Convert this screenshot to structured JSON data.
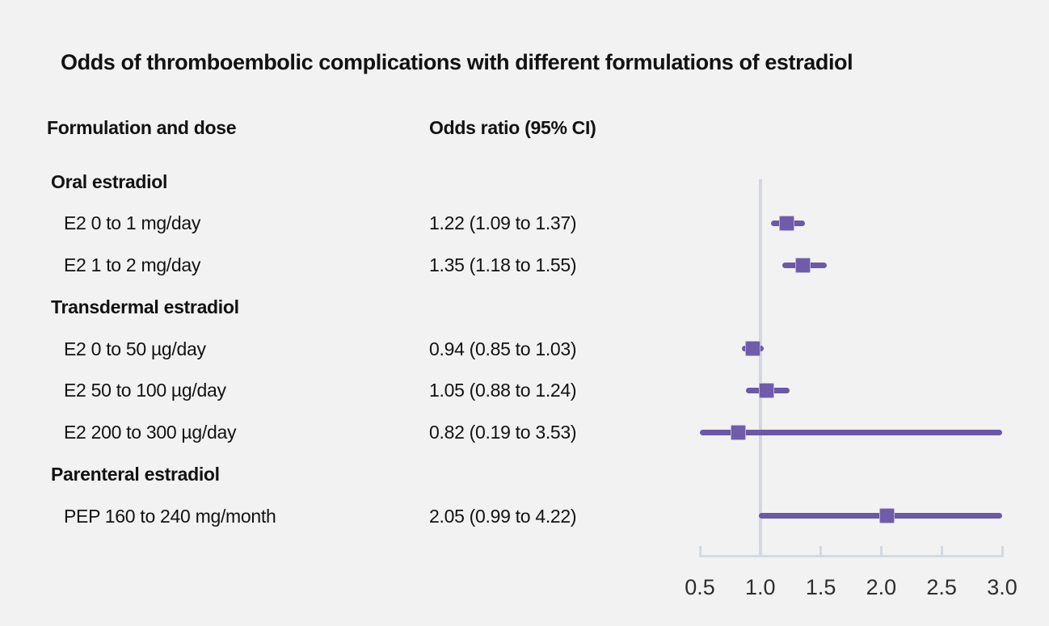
{
  "chart_data": {
    "type": "forest",
    "title": "Odds of thromboembolic complications with different formulations of estradiol",
    "columns": {
      "left": "Formulation and dose",
      "right": "Odds ratio (95% CI)"
    },
    "xlim": [
      0.5,
      3.0
    ],
    "x_ticks": [
      0.5,
      1.0,
      1.5,
      2.0,
      2.5,
      3.0
    ],
    "x_tick_labels": [
      "0.5",
      "1.0",
      "1.5",
      "2.0",
      "2.5",
      "3.0"
    ],
    "reference_line": 1.0,
    "grid": false,
    "legend": false,
    "rows": [
      {
        "type": "group",
        "label": "Oral estradiol"
      },
      {
        "type": "item",
        "label": "E2 0 to 1 mg/day",
        "or": 1.22,
        "ci_low": 1.09,
        "ci_high": 1.37,
        "display": "1.22 (1.09 to 1.37)"
      },
      {
        "type": "item",
        "label": "E2 1 to 2 mg/day",
        "or": 1.35,
        "ci_low": 1.18,
        "ci_high": 1.55,
        "display": "1.35 (1.18 to 1.55)"
      },
      {
        "type": "group",
        "label": "Transdermal estradiol"
      },
      {
        "type": "item",
        "label": "E2 0 to 50 µg/day",
        "or": 0.94,
        "ci_low": 0.85,
        "ci_high": 1.03,
        "display": "0.94 (0.85 to 1.03)"
      },
      {
        "type": "item",
        "label": "E2 50 to 100 µg/day",
        "or": 1.05,
        "ci_low": 0.88,
        "ci_high": 1.24,
        "display": "1.05 (0.88 to 1.24)"
      },
      {
        "type": "item",
        "label": "E2 200 to 300 µg/day",
        "or": 0.82,
        "ci_low": 0.19,
        "ci_high": 3.53,
        "display": "0.82 (0.19 to 3.53)"
      },
      {
        "type": "group",
        "label": "Parenteral estradiol"
      },
      {
        "type": "item",
        "label": "PEP 160 to 240 mg/month",
        "or": 2.05,
        "ci_low": 0.99,
        "ci_high": 4.22,
        "display": "2.05 (0.99 to 4.22)"
      }
    ]
  },
  "colors": {
    "background": "#f2f2f2",
    "text": "#121212",
    "ci_line": "#6b58a6",
    "marker_fill": "#6f5caa",
    "marker_edge": "#b9b0d6",
    "reference_line": "#d4d7e2",
    "axis": "#d2d9e1",
    "tick_label_text": "#2e2e2e"
  }
}
